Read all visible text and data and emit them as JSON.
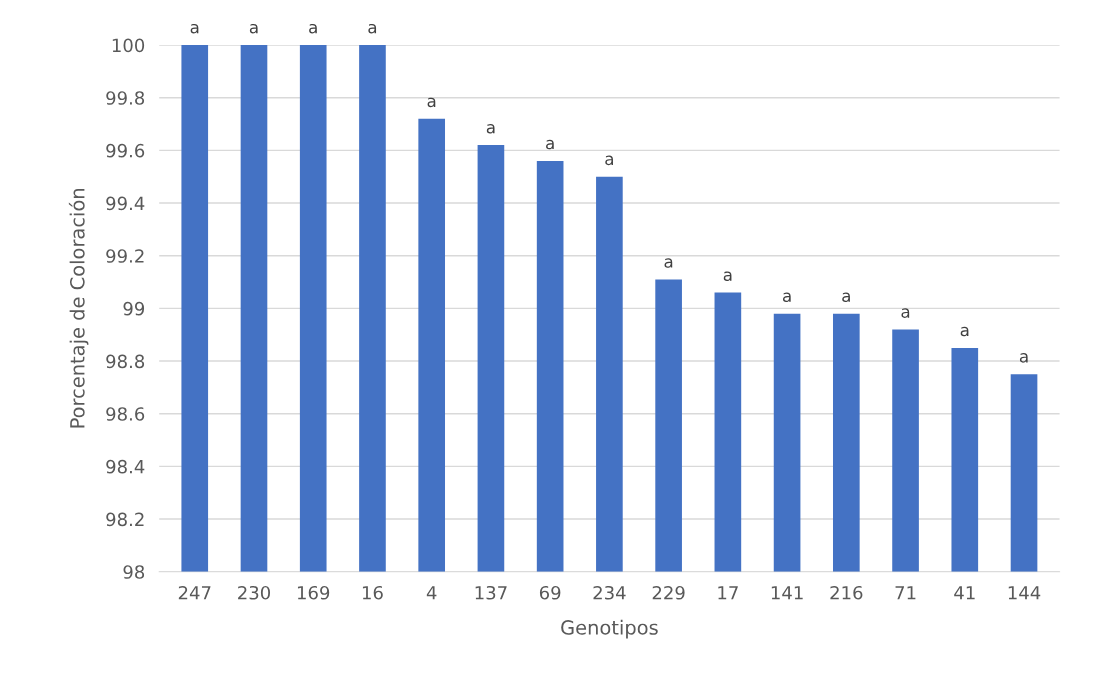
{
  "chart_data": {
    "type": "bar",
    "xlabel": "Genotipos",
    "ylabel": "Porcentaje de Coloración",
    "categories": [
      "247",
      "230",
      "169",
      "16",
      "4",
      "137",
      "69",
      "234",
      "229",
      "17",
      "141",
      "216",
      "71",
      "41",
      "144"
    ],
    "values": [
      100,
      100,
      100,
      100,
      99.72,
      99.62,
      99.56,
      99.5,
      99.11,
      99.06,
      98.98,
      98.98,
      98.92,
      98.85,
      98.75
    ],
    "value_labels": [
      "a",
      "a",
      "a",
      "a",
      "a",
      "a",
      "a",
      "a",
      "a",
      "a",
      "a",
      "a",
      "a",
      "a",
      "a"
    ],
    "color": "#4472c4",
    "ylim": [
      98,
      100
    ],
    "yticks": [
      98,
      {
        "value": 98.2,
        "label": "98.2"
      },
      {
        "value": 98.4,
        "label": "98.4"
      },
      {
        "value": 98.6,
        "label": "98.6"
      },
      {
        "value": 98.8,
        "label": "98.8"
      },
      99,
      {
        "value": 99.2,
        "label": "99.2"
      },
      {
        "value": 99.4,
        "label": "99.4"
      },
      {
        "value": 99.6,
        "label": "99.6"
      },
      {
        "value": 99.8,
        "label": "99.8"
      },
      100
    ],
    "grid": "y",
    "legend": false
  }
}
